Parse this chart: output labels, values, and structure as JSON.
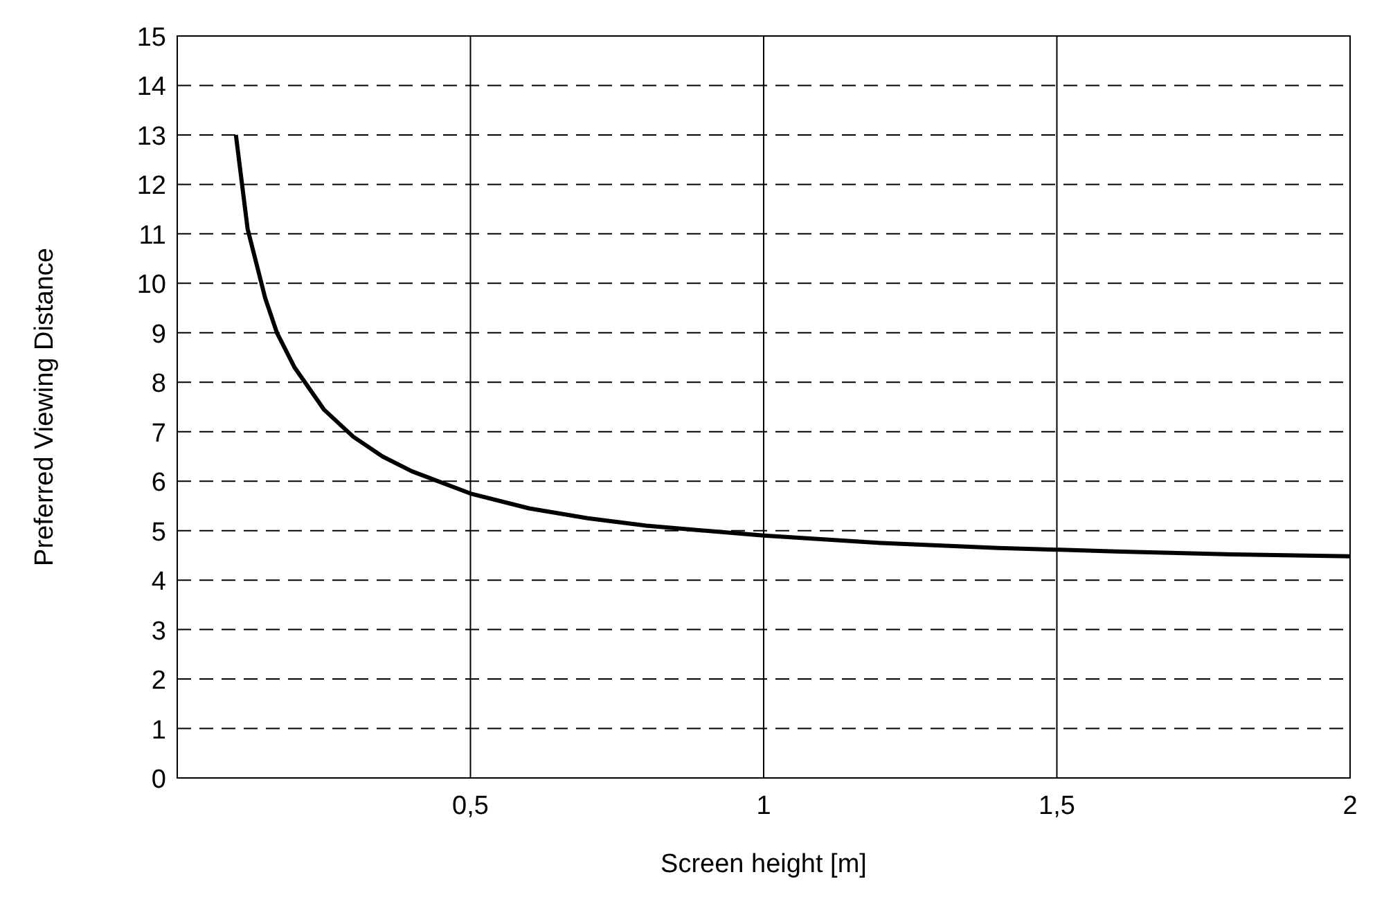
{
  "chart_data": {
    "type": "line",
    "xlabel": "Screen height [m]",
    "ylabel": "Preferred Viewing Distance",
    "x": [
      0.1,
      0.12,
      0.15,
      0.17,
      0.2,
      0.25,
      0.3,
      0.35,
      0.4,
      0.5,
      0.6,
      0.7,
      0.8,
      1,
      1.2,
      1.4,
      1.6,
      1.8,
      2
    ],
    "series": [
      {
        "color": "#000000",
        "values": [
          13,
          11.1,
          9.7,
          9.0,
          8.3,
          7.45,
          6.9,
          6.5,
          6.2,
          5.75,
          5.45,
          5.25,
          5.1,
          4.9,
          4.75,
          4.65,
          4.58,
          4.52,
          4.48
        ]
      }
    ],
    "xlim": [
      0,
      2
    ],
    "xticks": [
      {
        "value": 0.5,
        "label": "0,5"
      },
      1,
      {
        "value": 1.5,
        "label": "1,5"
      },
      2
    ],
    "ylim": [
      0,
      15
    ],
    "yticks": [
      0,
      1,
      2,
      3,
      4,
      5,
      6,
      7,
      8,
      9,
      10,
      11,
      12,
      13,
      14,
      15
    ],
    "grid": true,
    "marker": "none",
    "line_style": "solid"
  }
}
